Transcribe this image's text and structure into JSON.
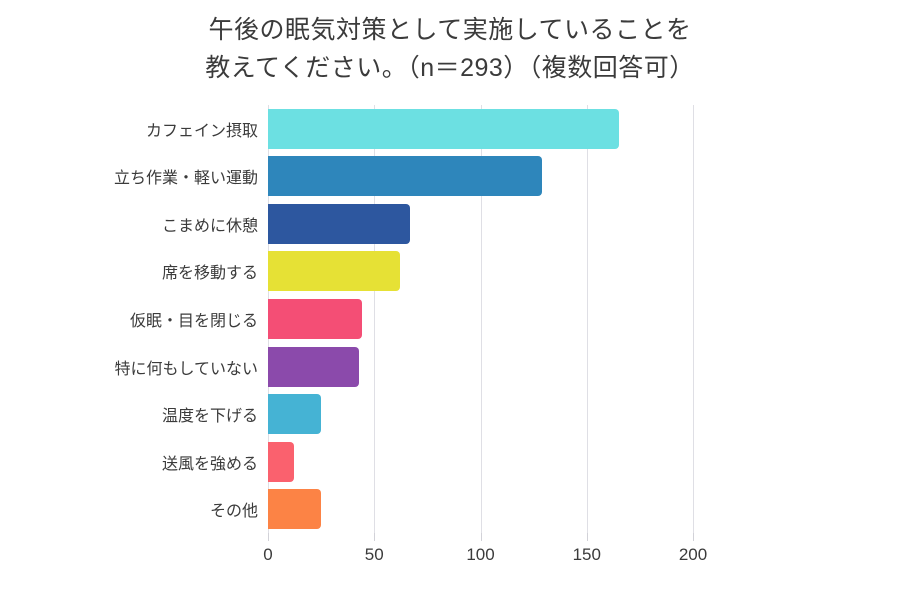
{
  "title": {
    "line1": "午後の眠気対策として実施していることを",
    "line2": "教えてください。（n＝293）（複数回答可）"
  },
  "colors": {
    "background": "#ffffff",
    "grid": "#dfdfe5",
    "text": "#3b3b3b"
  },
  "chart_data": {
    "type": "bar",
    "orientation": "horizontal",
    "title": "午後の眠気対策として実施していることを教えてください。（n＝293）（複数回答可）",
    "n": 293,
    "categories": [
      "カフェイン摂取",
      "立ち作業・軽い運動",
      "こまめに休憩",
      "席を移動する",
      "仮眠・目を閉じる",
      "特に何もしていない",
      "温度を下げる",
      "送風を強める",
      "その他"
    ],
    "values": [
      165,
      129,
      67,
      62,
      44,
      43,
      25,
      12,
      25
    ],
    "bar_colors": [
      "#6CE0E2",
      "#2E86BB",
      "#2D579F",
      "#E6E135",
      "#F44E75",
      "#8B4AAB",
      "#45B3D4",
      "#FA616E",
      "#FC8345"
    ],
    "xlabel": "",
    "ylabel": "",
    "xlim": [
      0,
      200
    ],
    "xticks": [
      0,
      50,
      100,
      150,
      200
    ],
    "grid": true,
    "legend": false
  }
}
